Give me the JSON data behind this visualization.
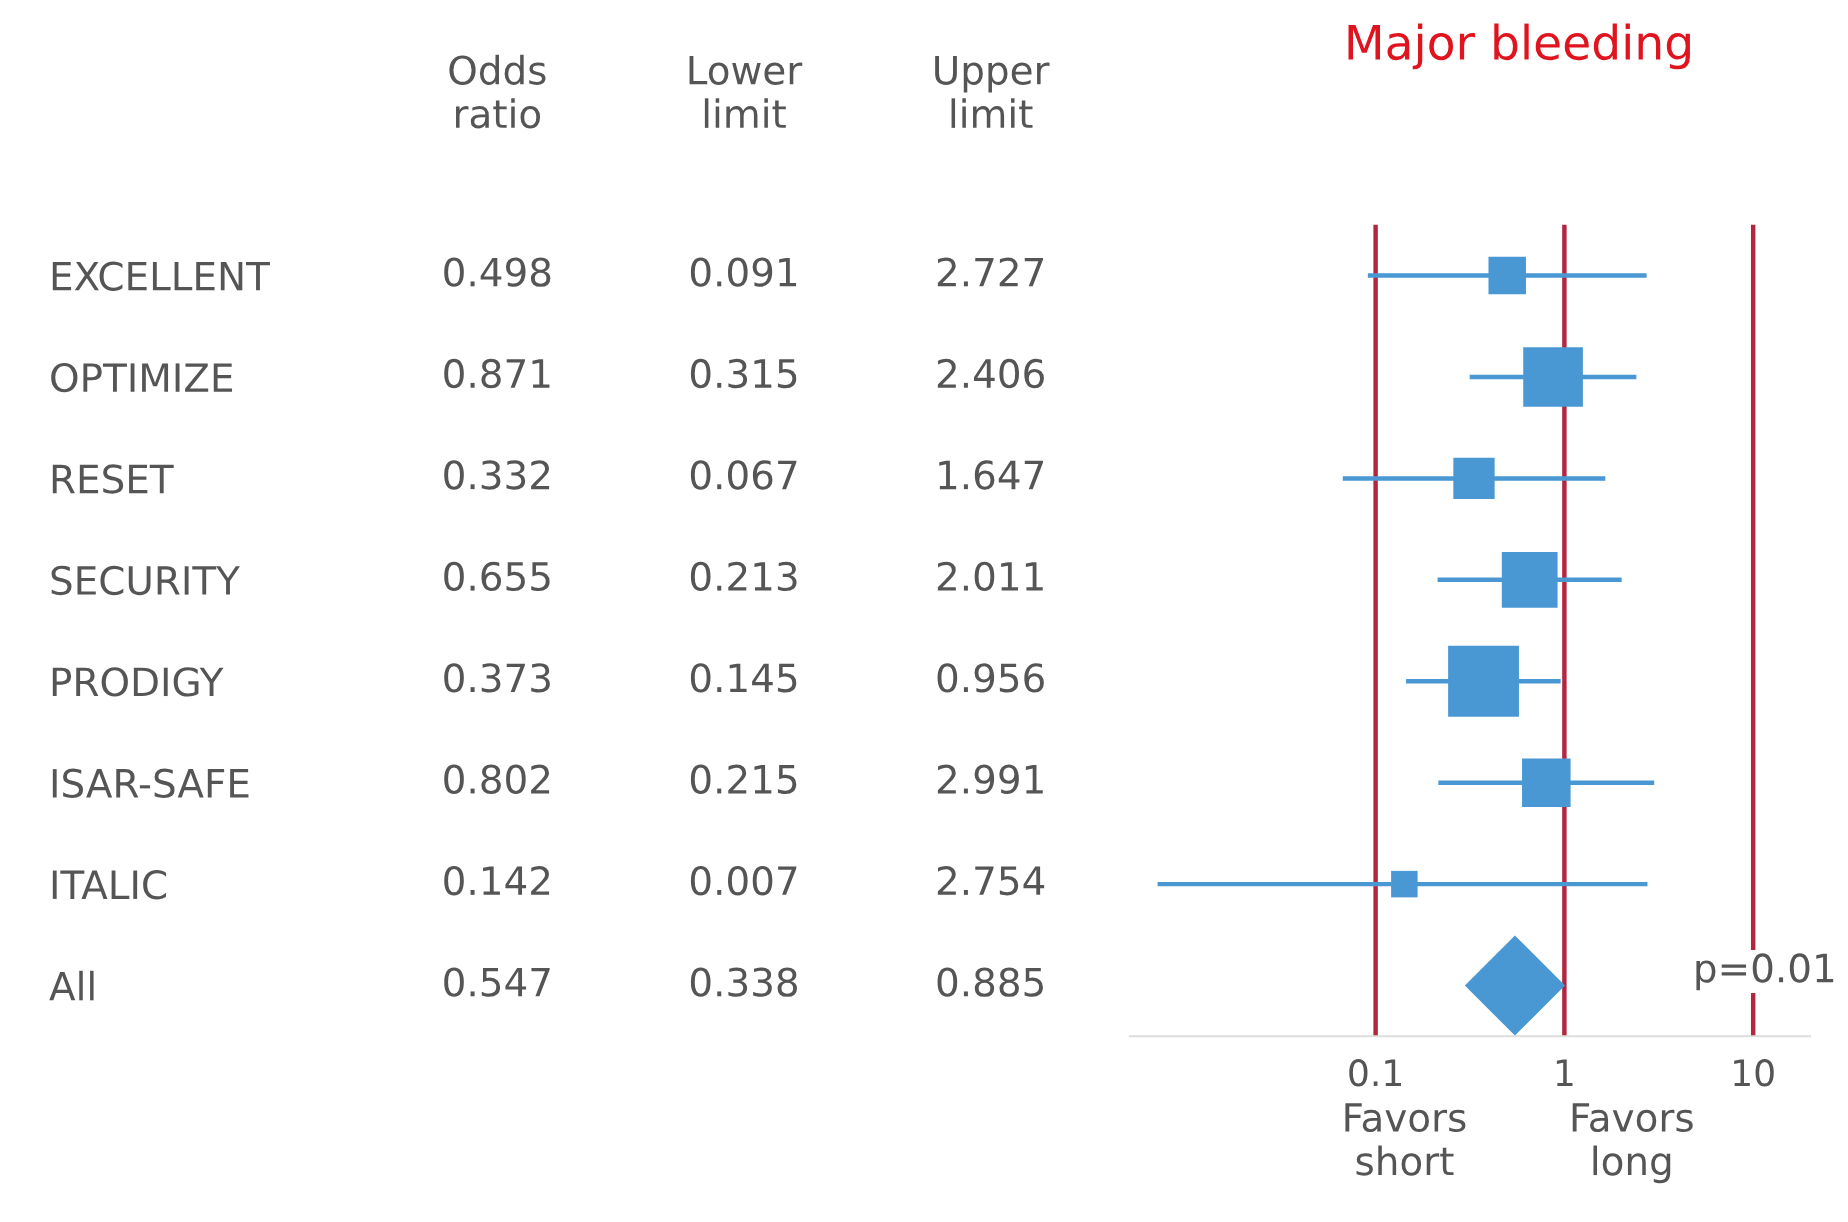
{
  "chart_data": [
    {
      "type": "heatmap",
      "categories": [
        "Odds\nratio",
        "Lower\nlimit",
        "Upper\nlimit"
      ],
      "y_categories": [
        "EXCELLENT",
        "OPTIMIZE",
        "RESET",
        "SECURITY",
        "PRODIGY",
        "ISAR-SAFE",
        "ITALIC",
        "All"
      ],
      "cells": [
        [
          0.498,
          0.091,
          2.727
        ],
        [
          0.871,
          0.315,
          2.406
        ],
        [
          0.332,
          0.067,
          1.647
        ],
        [
          0.655,
          0.213,
          2.011
        ],
        [
          0.373,
          0.145,
          0.956
        ],
        [
          0.802,
          0.215,
          2.991
        ],
        [
          0.142,
          0.007,
          2.754
        ],
        [
          0.547,
          0.338,
          0.885
        ]
      ],
      "data_labels": true
    },
    {
      "type": "bubble",
      "orientation": "horizontal",
      "title": "Major bleeding",
      "categories": [
        null,
        null,
        null,
        null,
        null,
        null,
        null,
        null
      ],
      "series": [
        {
          "marker": "square",
          "color": "#4a98d3",
          "values": [
            0.498,
            0.871,
            0.332,
            0.655,
            0.373,
            0.802,
            0.142,
            null
          ],
          "errors": [
            [
              0.091,
              2.727
            ],
            [
              0.315,
              2.406
            ],
            [
              0.067,
              1.647
            ],
            [
              0.213,
              2.011
            ],
            [
              0.145,
              0.956
            ],
            [
              0.215,
              2.991
            ],
            [
              0.007,
              2.754
            ],
            null
          ],
          "sizes": [
            0.28,
            0.71,
            0.34,
            0.62,
            1,
            0.47,
            0.14,
            null
          ]
        },
        {
          "marker": "diamond",
          "color": "#4a98d3",
          "values": [
            null,
            null,
            null,
            null,
            null,
            null,
            null,
            0.547
          ],
          "errors": [
            null,
            null,
            null,
            null,
            null,
            null,
            null,
            [
              0.338,
              0.885
            ]
          ],
          "sizes": [
            null,
            null,
            null,
            null,
            null,
            null,
            null,
            1
          ]
        }
      ],
      "log": "x",
      "xlim": [
        0.005,
        20
      ],
      "xticks": [
        0.1,
        1,
        10
      ],
      "tick_labels": "x",
      "ref_lines": [
        {
          "axis": "x",
          "value": 0.1,
          "color": "#b22640"
        },
        {
          "axis": "x",
          "value": 1,
          "color": "#b22640"
        },
        {
          "axis": "x",
          "value": 10,
          "color": "#b22640"
        }
      ],
      "grid": false,
      "annotations": [
        "Favors\nshort",
        "Favors\nlong",
        "p=0.01"
      ]
    }
  ]
}
